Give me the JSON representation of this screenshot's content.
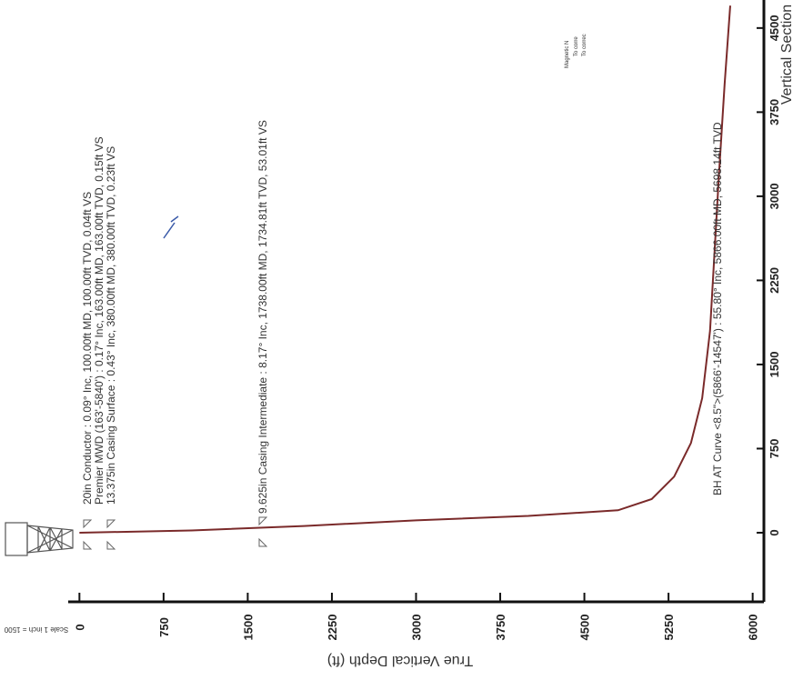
{
  "chart_data": {
    "type": "line",
    "x_label": "True Vertical Depth (ft)",
    "y_label": "Vertical Section",
    "scale_note": "Scale 1 inch = 1500",
    "xlim": [
      -100,
      6100
    ],
    "xticks": [
      0,
      750,
      1500,
      2250,
      3000,
      3750,
      4500,
      5250,
      6000
    ],
    "ylim": [
      -600,
      4750
    ],
    "yticks": [
      0,
      750,
      1500,
      2250,
      3000,
      3750,
      4500
    ],
    "series": [
      {
        "color": "#7a2a2a",
        "x": [
          0,
          1000,
          2000,
          3000,
          4000,
          4800,
          5100,
          5300,
          5450,
          5550,
          5620,
          5660,
          5700,
          5750,
          5800
        ],
        "values": [
          0,
          20,
          60,
          110,
          150,
          200,
          300,
          500,
          800,
          1200,
          1800,
          2500,
          3200,
          4000,
          4700
        ]
      }
    ],
    "annotations": [
      "20in Conductor : 0.09° Inc, 100.00ft MD, 100.00ft TVD, 0.04ft VS",
      "Premier MWD (163'-5840') : 0.17° Inc, 163.00ft MD, 163.00ft TVD, 0.15ft VS",
      "13.375in Casing Surface : 0.43° Inc, 380.00ft MD, 380.00ft TVD, 0.23ft VS",
      "9.625in Casing Intermediate : 8.17° Inc, 1738.00ft MD, 1734.81ft TVD, 53.01ft VS",
      "BH AT Curve <8.5\">(5866'-14547') : 55.80° Inc, 5866.00ft MD, 5698.14ft TVD",
      "Magnetic N",
      "To corre",
      "To correc"
    ]
  }
}
